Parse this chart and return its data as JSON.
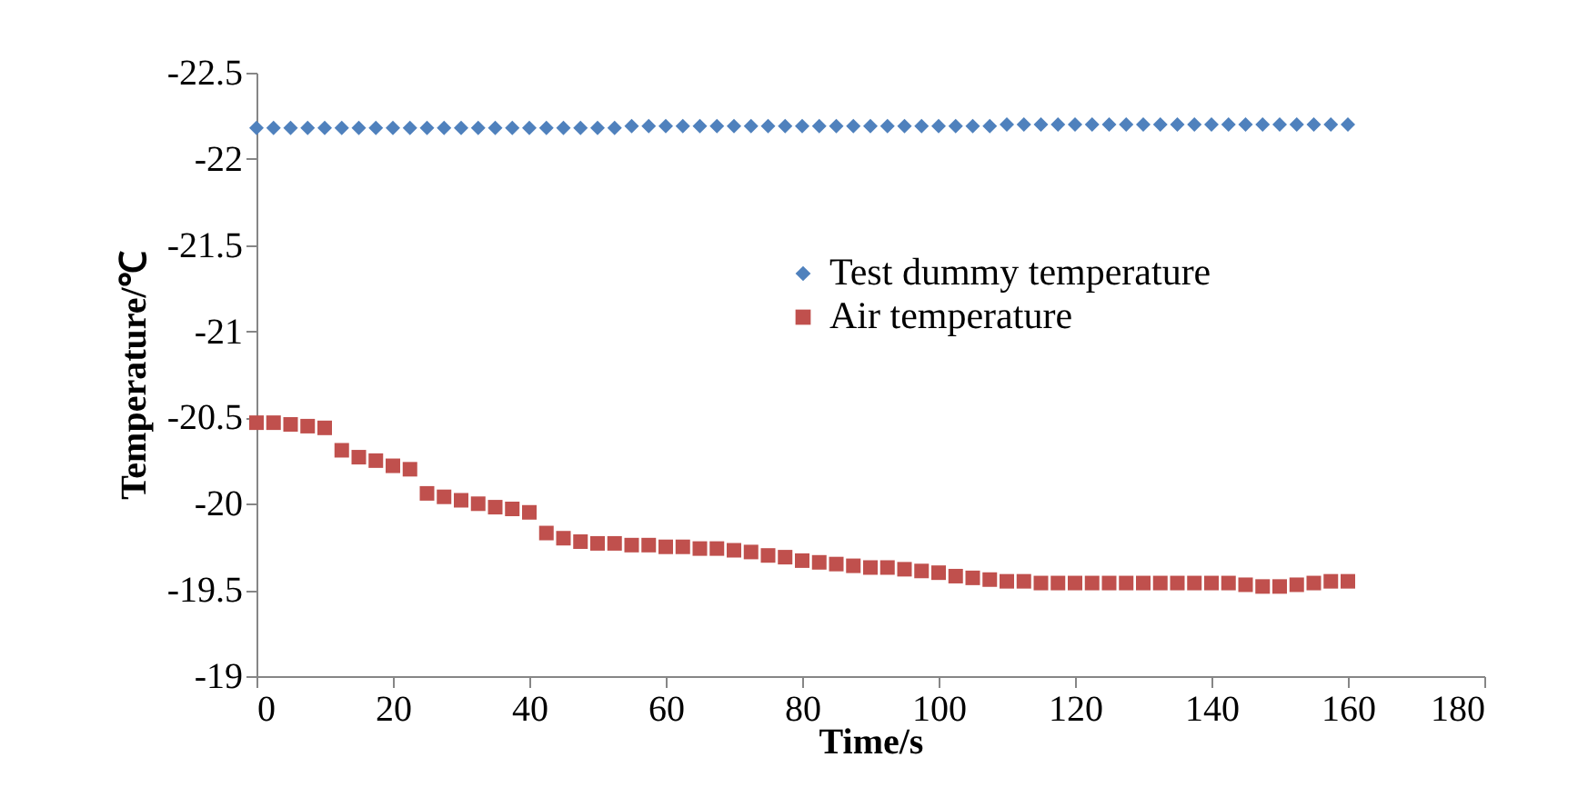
{
  "chart_data": {
    "type": "scatter",
    "xlabel": "Time/s",
    "ylabel": "Temperature/℃",
    "x": [
      0,
      2.5,
      5,
      7.5,
      10,
      12.5,
      15,
      17.5,
      20,
      22.5,
      25,
      27.5,
      30,
      32.5,
      35,
      37.5,
      40,
      42.5,
      45,
      47.5,
      50,
      52.5,
      55,
      57.5,
      60,
      62.5,
      65,
      67.5,
      70,
      72.5,
      75,
      77.5,
      80,
      82.5,
      85,
      87.5,
      90,
      92.5,
      95,
      97.5,
      100,
      102.5,
      105,
      107.5,
      110,
      112.5,
      115,
      117.5,
      120,
      122.5,
      125,
      127.5,
      130,
      132.5,
      135,
      137.5,
      140,
      142.5,
      145,
      147.5,
      150,
      152.5,
      155,
      157.5,
      160
    ],
    "series": [
      {
        "name": "Test dummy temperature",
        "color": "#4f81bd",
        "marker": "diamond",
        "values": [
          -22.18,
          -22.18,
          -22.18,
          -22.18,
          -22.18,
          -22.18,
          -22.18,
          -22.18,
          -22.18,
          -22.18,
          -22.18,
          -22.18,
          -22.18,
          -22.18,
          -22.18,
          -22.18,
          -22.18,
          -22.18,
          -22.18,
          -22.18,
          -22.18,
          -22.18,
          -22.19,
          -22.19,
          -22.19,
          -22.19,
          -22.19,
          -22.19,
          -22.19,
          -22.19,
          -22.19,
          -22.19,
          -22.19,
          -22.19,
          -22.19,
          -22.19,
          -22.19,
          -22.19,
          -22.19,
          -22.19,
          -22.19,
          -22.19,
          -22.19,
          -22.19,
          -22.2,
          -22.2,
          -22.2,
          -22.2,
          -22.2,
          -22.2,
          -22.2,
          -22.2,
          -22.2,
          -22.2,
          -22.2,
          -22.2,
          -22.2,
          -22.2,
          -22.2,
          -22.2,
          -22.2,
          -22.2,
          -22.2,
          -22.2,
          -22.2
        ]
      },
      {
        "name": "Air temperature",
        "color": "#c0504d",
        "marker": "square",
        "values": [
          -20.47,
          -20.47,
          -20.46,
          -20.45,
          -20.44,
          -20.31,
          -20.27,
          -20.25,
          -20.22,
          -20.2,
          -20.06,
          -20.04,
          -20.02,
          -20.0,
          -19.98,
          -19.97,
          -19.95,
          -19.83,
          -19.8,
          -19.78,
          -19.77,
          -19.77,
          -19.76,
          -19.76,
          -19.75,
          -19.75,
          -19.74,
          -19.74,
          -19.73,
          -19.72,
          -19.7,
          -19.69,
          -19.67,
          -19.66,
          -19.65,
          -19.64,
          -19.63,
          -19.63,
          -19.62,
          -19.61,
          -19.6,
          -19.58,
          -19.57,
          -19.56,
          -19.55,
          -19.55,
          -19.54,
          -19.54,
          -19.54,
          -19.54,
          -19.54,
          -19.54,
          -19.54,
          -19.54,
          -19.54,
          -19.54,
          -19.54,
          -19.54,
          -19.53,
          -19.52,
          -19.52,
          -19.53,
          -19.54,
          -19.55,
          -19.55
        ]
      }
    ],
    "xlim": [
      0,
      180
    ],
    "xticks": [
      0,
      20,
      40,
      60,
      80,
      100,
      120,
      140,
      160,
      180
    ],
    "ylim": [
      -19,
      -22.5
    ],
    "yticks": [
      -19,
      -19.5,
      -20,
      -20.5,
      -21,
      -21.5,
      -22,
      -22.5
    ],
    "grid": false,
    "legend": "right"
  }
}
